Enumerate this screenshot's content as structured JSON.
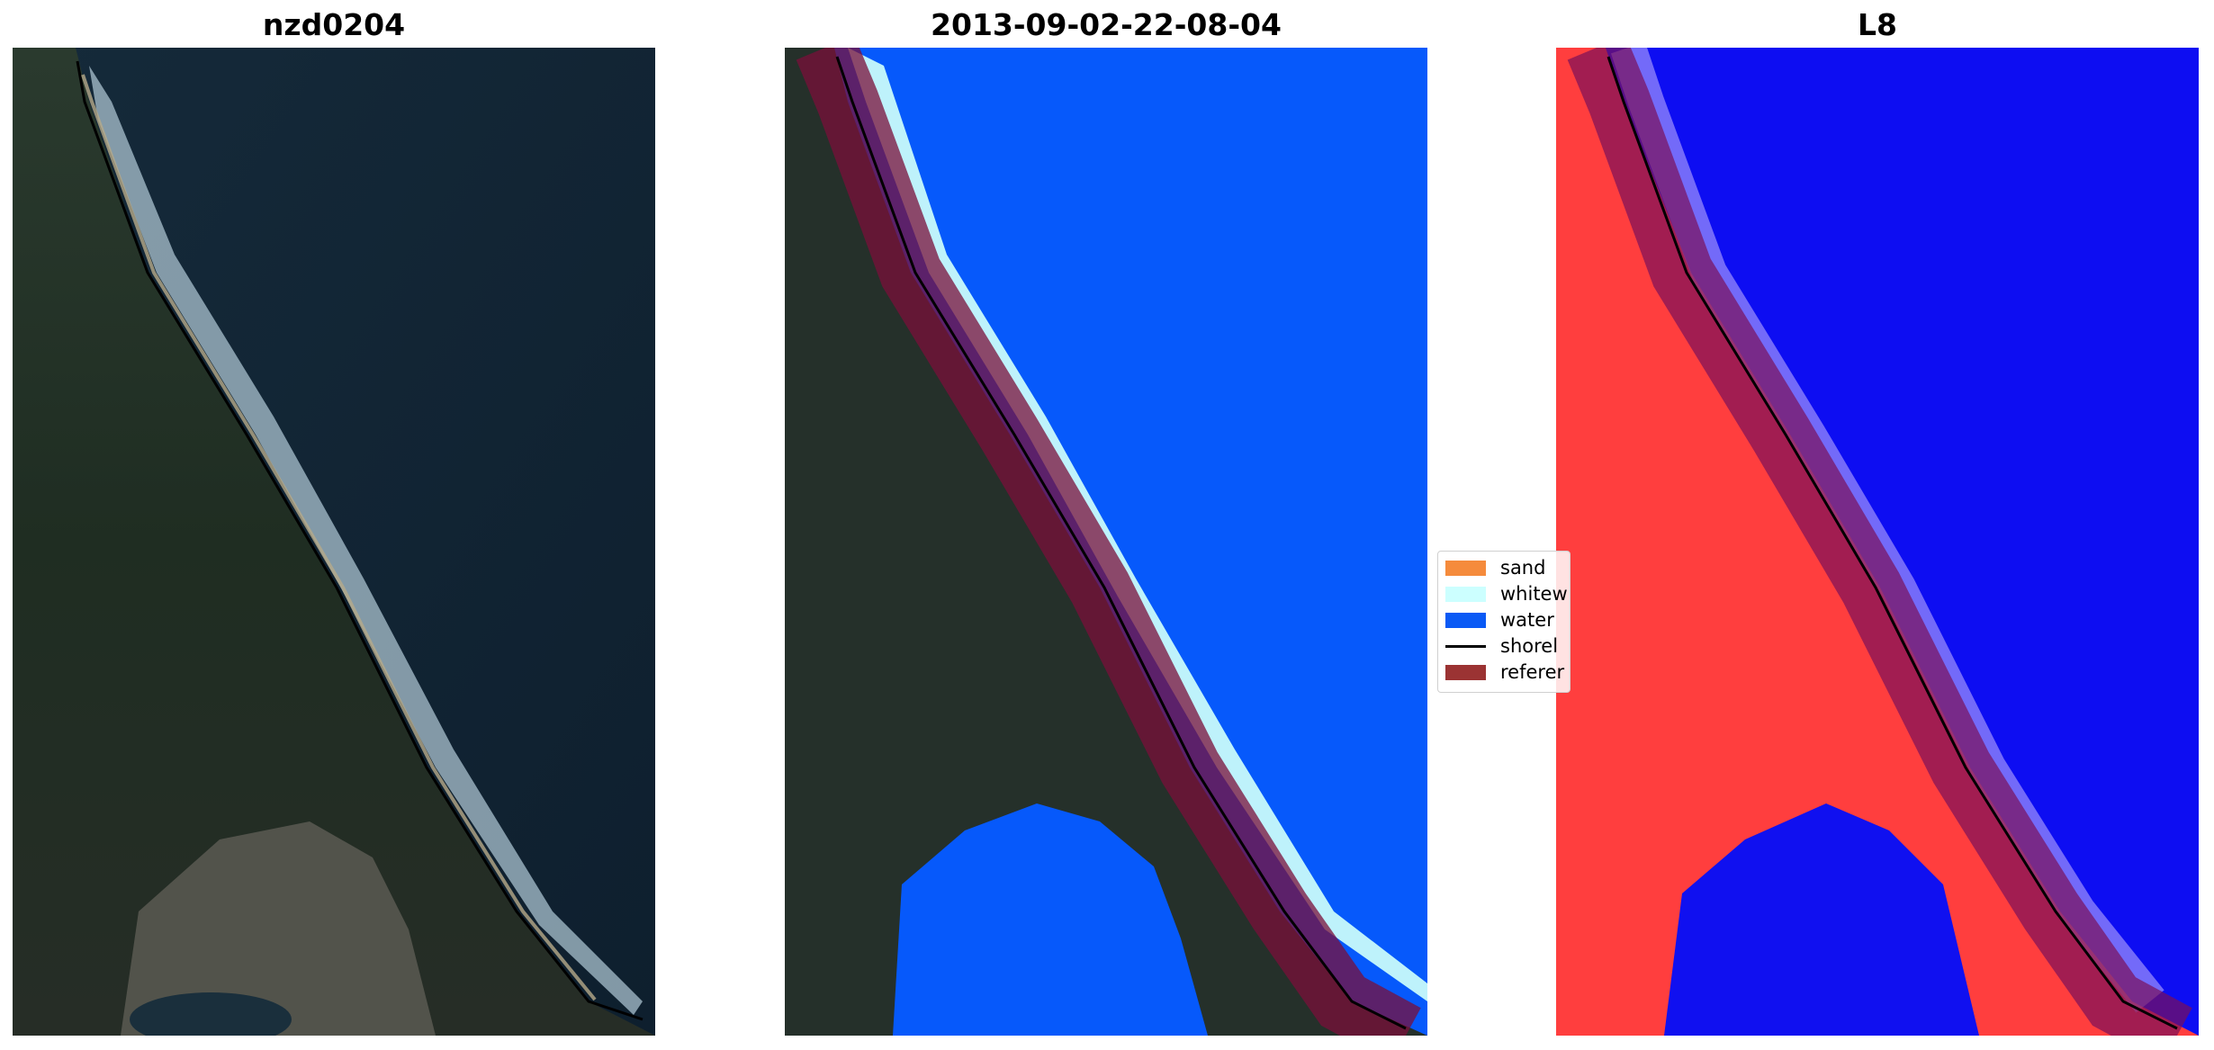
{
  "panels": [
    {
      "title": "nzd0204",
      "kind": "rgb-satellite-image"
    },
    {
      "title": "2013-09-02-22-08-04",
      "kind": "classified-image"
    },
    {
      "title": "L8",
      "kind": "water-index-image"
    }
  ],
  "legend": {
    "items": [
      {
        "label": "sand",
        "type": "patch",
        "color": "#f58b3c"
      },
      {
        "label": "whitew",
        "type": "patch",
        "color": "#ccffff"
      },
      {
        "label": "water",
        "type": "patch",
        "color": "#0a5af5"
      },
      {
        "label": "shorel",
        "type": "line",
        "color": "#000000"
      },
      {
        "label": "referer",
        "type": "patch",
        "color": "#9b3333"
      }
    ]
  },
  "colors": {
    "ocean_dark": "#0f2233",
    "land_dark": "#1d2a22",
    "classified_water": "#0659fb",
    "whitewater": "#c8fbfb",
    "reference_buffer": "#7a0f3a",
    "index_land": "#ff3b3b",
    "index_water": "#1414f0"
  }
}
